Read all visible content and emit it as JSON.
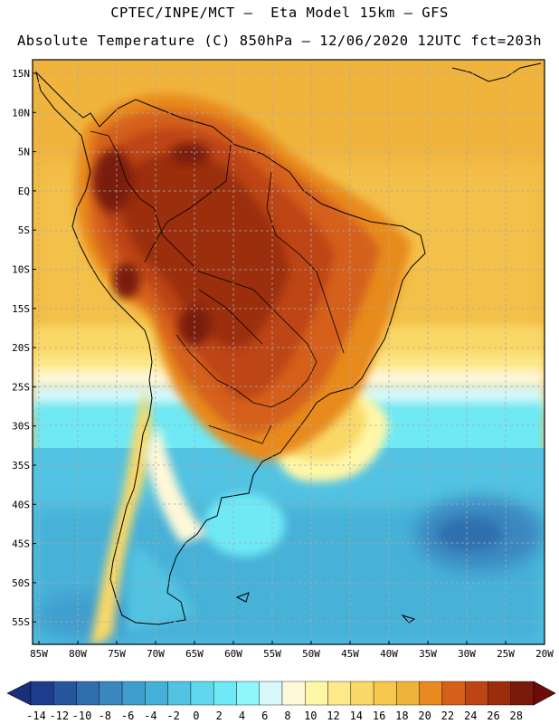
{
  "header": {
    "line1": "CPTEC/INPE/MCT –  Eta Model 15km – GFS",
    "line2": "Absolute Temperature (C) 850hPa – 12/06/2020 12UTC fct=203h"
  },
  "map": {
    "lat_labels": [
      "15N",
      "10N",
      "5N",
      "EQ",
      "5S",
      "10S",
      "15S",
      "20S",
      "25S",
      "30S",
      "35S",
      "40S",
      "45S",
      "50S",
      "55S"
    ],
    "lon_labels": [
      "85W",
      "80W",
      "75W",
      "70W",
      "65W",
      "60W",
      "55W",
      "50W",
      "45W",
      "40W",
      "35W",
      "30W",
      "25W",
      "20W"
    ],
    "gridlines": "dashed",
    "region": "South America"
  },
  "colorbar": {
    "labels": [
      "-14",
      "-12",
      "-10",
      "-8",
      "-6",
      "-4",
      "-2",
      "0",
      "2",
      "4",
      "6",
      "8",
      "10",
      "12",
      "14",
      "16",
      "18",
      "20",
      "22",
      "24",
      "26",
      "28"
    ],
    "colors": [
      "#1f3d8f",
      "#27569e",
      "#2f6fae",
      "#3a86bf",
      "#3f9dcd",
      "#46b1d8",
      "#52c3e2",
      "#5fd6ec",
      "#6ee9f5",
      "#8ff6fb",
      "#d6f8fb",
      "#fff8d8",
      "#fff7a8",
      "#fde98a",
      "#f9d868",
      "#f5c84c",
      "#efb43c",
      "#e88a1f",
      "#d4601a",
      "#bd4514",
      "#9b2d0d",
      "#7a1a0a"
    ],
    "underflow_color": "#1a2f7a",
    "overflow_color": "#6e0d08"
  },
  "fields": {
    "ocean_north": "#f0b43c",
    "ocean_mid": "#f5c84c",
    "ocean_south": "#3fa7d2",
    "cold_pool": "#2a6aaa",
    "amazon_hot": "#a8370f",
    "andes_warm": "#7a1a0a"
  }
}
